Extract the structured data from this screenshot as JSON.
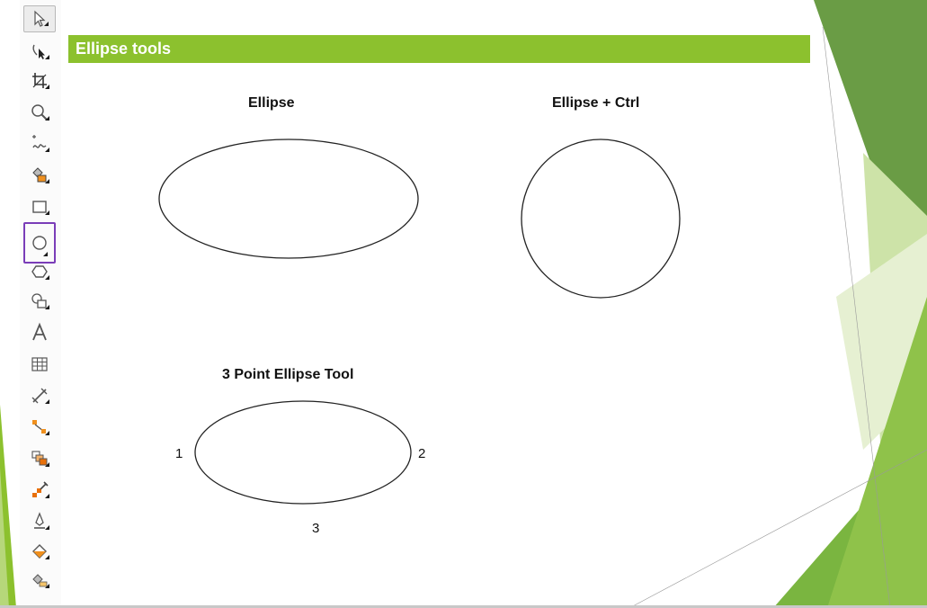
{
  "slide": {
    "header_title": "Ellipse tools",
    "accent_color": "#8cc12e"
  },
  "toolbar": {
    "selected_tool": "ellipse-tool",
    "tools": [
      {
        "name": "pick-tool",
        "icon": "cursor-arrow-icon"
      },
      {
        "name": "shape-tool",
        "icon": "shape-edit-icon"
      },
      {
        "name": "crop-tool",
        "icon": "crop-icon"
      },
      {
        "name": "zoom-tool",
        "icon": "magnifier-icon"
      },
      {
        "name": "freehand-tool",
        "icon": "freehand-icon"
      },
      {
        "name": "smart-fill-tool",
        "icon": "smart-fill-icon"
      },
      {
        "name": "rectangle-tool",
        "icon": "rectangle-icon"
      },
      {
        "name": "ellipse-tool",
        "icon": "ellipse-icon"
      },
      {
        "name": "polygon-tool",
        "icon": "polygon-icon"
      },
      {
        "name": "basic-shapes-tool",
        "icon": "basic-shapes-icon"
      },
      {
        "name": "text-tool",
        "icon": "text-a-icon"
      },
      {
        "name": "table-tool",
        "icon": "table-icon"
      },
      {
        "name": "dimension-tool",
        "icon": "dimension-icon"
      },
      {
        "name": "connector-tool",
        "icon": "connector-icon"
      },
      {
        "name": "blend-tool",
        "icon": "blend-icon"
      },
      {
        "name": "transparency-tool",
        "icon": "transparency-icon"
      },
      {
        "name": "outline-pen-tool",
        "icon": "outline-pen-icon"
      },
      {
        "name": "fill-tool",
        "icon": "fill-bucket-icon"
      },
      {
        "name": "interactive-fill-tool",
        "icon": "interactive-fill-icon"
      }
    ]
  },
  "examples": {
    "ellipse_title": "Ellipse",
    "ellipse_ctrl_title": "Ellipse + Ctrl",
    "three_point_title": "3 Point Ellipse Tool",
    "point_1": "1",
    "point_2": "2",
    "point_3": "3"
  }
}
